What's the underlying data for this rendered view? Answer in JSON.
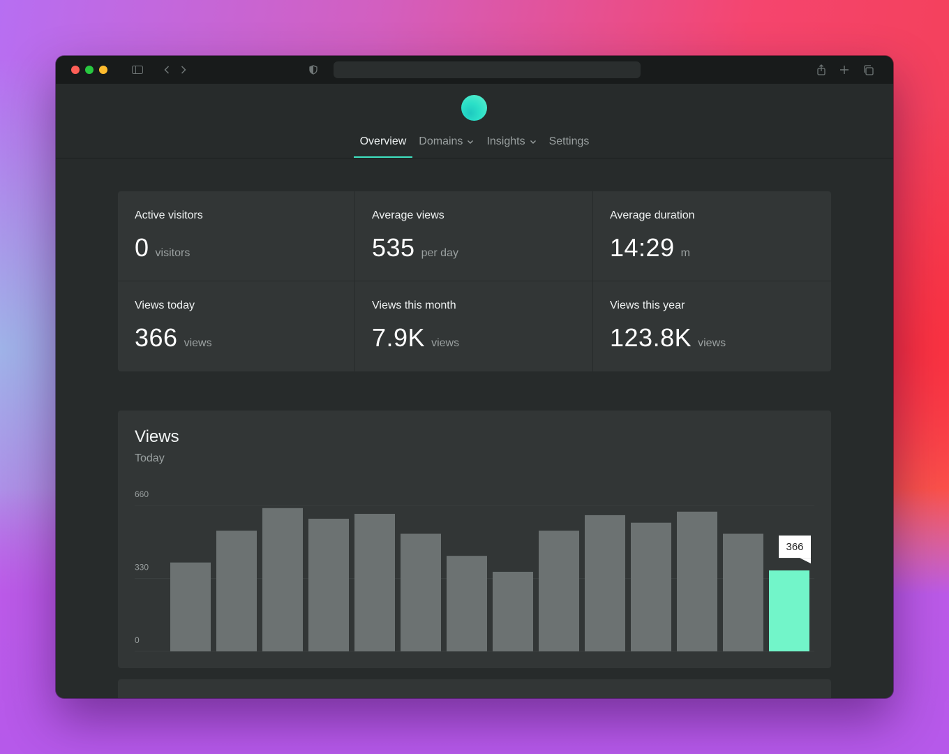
{
  "browser": {
    "icons": [
      "sidebar-icon",
      "back-icon",
      "forward-icon",
      "privacy-shield-icon",
      "share-icon",
      "new-tab-icon",
      "tabs-overview-icon"
    ]
  },
  "nav": {
    "items": [
      {
        "label": "Overview",
        "active": true
      },
      {
        "label": "Domains",
        "dropdown": true
      },
      {
        "label": "Insights",
        "dropdown": true
      },
      {
        "label": "Settings"
      }
    ]
  },
  "stats": [
    {
      "label": "Active visitors",
      "value": "0",
      "unit": "visitors"
    },
    {
      "label": "Average views",
      "value": "535",
      "unit": "per day"
    },
    {
      "label": "Average duration",
      "value": "14:29",
      "unit": "m"
    },
    {
      "label": "Views today",
      "value": "366",
      "unit": "views"
    },
    {
      "label": "Views this month",
      "value": "7.9K",
      "unit": "views"
    },
    {
      "label": "Views this year",
      "value": "123.8K",
      "views_unit": true,
      "unit": "views"
    }
  ],
  "chart": {
    "title": "Views",
    "subtitle": "Today",
    "highlight_label": "366"
  },
  "colors": {
    "accent": "#3fe3c2",
    "bar": "#6c7272",
    "bar_highlight": "#72f5c9"
  },
  "chart_data": {
    "type": "bar",
    "title": "Views",
    "subtitle": "Today",
    "y_ticks": [
      "660",
      "330",
      "0"
    ],
    "ylim": [
      0,
      660
    ],
    "values": [
      402,
      546,
      648,
      600,
      622,
      532,
      432,
      360,
      546,
      616,
      582,
      632,
      532,
      366
    ],
    "highlight_index": 13,
    "annotation": "366",
    "grid": true
  }
}
